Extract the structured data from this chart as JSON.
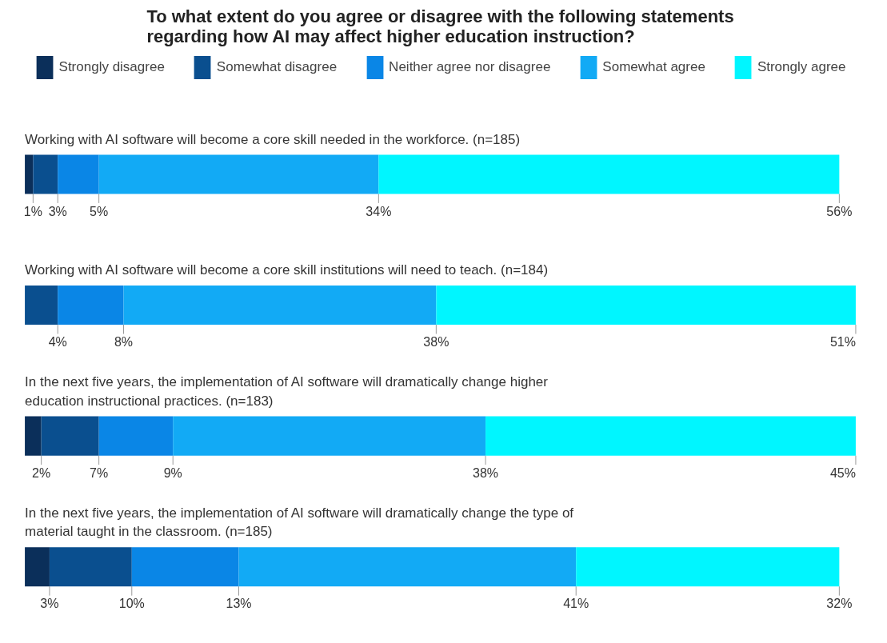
{
  "chart_data": {
    "type": "bar",
    "orientation": "horizontal",
    "stacked": true,
    "tick_labels": false,
    "legend": "top",
    "title": "To what extent do you agree or disagree with the following statements regarding how AI may affect higher education instruction?",
    "categories": [
      "Working with AI software will become a core skill needed in the workforce. (n=185)",
      "Working with AI software will become a core skill institutions will need to teach. (n=184)",
      "In the next five years, the implementation of AI software will dramatically change higher education instructional practices. (n=183)",
      "In the next five years, the implementation of AI software will dramatically change the type of material taught in the classroom. (n=185)"
    ],
    "series": [
      {
        "name": "Strongly disagree",
        "color": "#0b2f5a",
        "values": [
          1,
          null,
          2,
          3
        ],
        "value_labels": [
          "1%",
          null,
          "2%",
          "3%"
        ]
      },
      {
        "name": "Somewhat disagree",
        "color": "#0a4f8f",
        "values": [
          3,
          4,
          7,
          10
        ],
        "value_labels": [
          "3%",
          "4%",
          "7%",
          "10%"
        ]
      },
      {
        "name": "Neither agree nor disagree",
        "color": "#0a86e6",
        "values": [
          5,
          8,
          9,
          13
        ],
        "value_labels": [
          "5%",
          "8%",
          "9%",
          "13%"
        ]
      },
      {
        "name": "Somewhat agree",
        "color": "#12aaf5",
        "values": [
          34,
          38,
          38,
          41
        ],
        "value_labels": [
          "34%",
          "38%",
          "38%",
          "41%"
        ]
      },
      {
        "name": "Strongly agree",
        "color": "#00f6ff",
        "values": [
          56,
          51,
          45,
          32
        ],
        "value_labels": [
          "56%",
          "51%",
          "45%",
          "32%"
        ]
      }
    ]
  }
}
